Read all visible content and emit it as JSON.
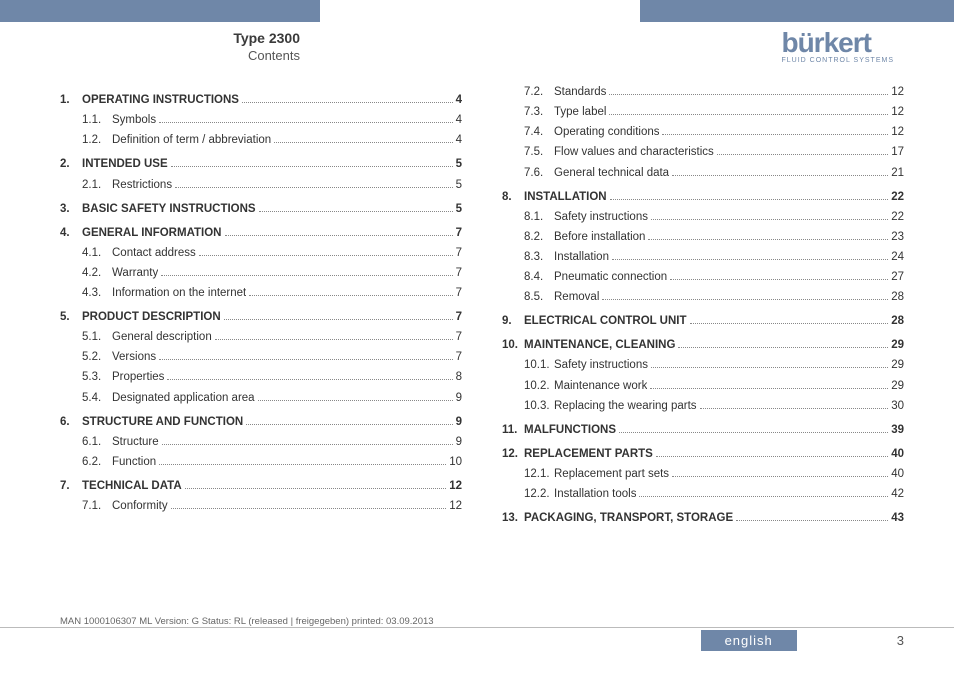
{
  "header": {
    "type_title": "Type 2300",
    "contents_label": "Contents",
    "logo_text": "bürkert",
    "logo_sub": "FLUID CONTROL SYSTEMS"
  },
  "toc_left": [
    {
      "kind": "main",
      "num": "1.",
      "title": "Operating instructions",
      "page": "4"
    },
    {
      "kind": "sub",
      "num": "1.1.",
      "title": "Symbols",
      "page": "4"
    },
    {
      "kind": "sub",
      "num": "1.2.",
      "title": "Definition of term / abbreviation",
      "page": "4"
    },
    {
      "kind": "main",
      "num": "2.",
      "title": "Intended use",
      "page": "5"
    },
    {
      "kind": "sub",
      "num": "2.1.",
      "title": "Restrictions",
      "page": "5"
    },
    {
      "kind": "main",
      "num": "3.",
      "title": "Basic safety instructions",
      "page": "5"
    },
    {
      "kind": "main",
      "num": "4.",
      "title": "General information",
      "page": "7"
    },
    {
      "kind": "sub",
      "num": "4.1.",
      "title": "Contact address",
      "page": "7"
    },
    {
      "kind": "sub",
      "num": "4.2.",
      "title": "Warranty",
      "page": "7"
    },
    {
      "kind": "sub",
      "num": "4.3.",
      "title": "Information on the internet",
      "page": "7"
    },
    {
      "kind": "main",
      "num": "5.",
      "title": "Product description",
      "page": "7"
    },
    {
      "kind": "sub",
      "num": "5.1.",
      "title": "General description",
      "page": "7"
    },
    {
      "kind": "sub",
      "num": "5.2.",
      "title": "Versions",
      "page": "7"
    },
    {
      "kind": "sub",
      "num": "5.3.",
      "title": "Properties",
      "page": "8"
    },
    {
      "kind": "sub",
      "num": "5.4.",
      "title": "Designated application area",
      "page": "9"
    },
    {
      "kind": "main",
      "num": "6.",
      "title": "Structure and function",
      "page": "9"
    },
    {
      "kind": "sub",
      "num": "6.1.",
      "title": "Structure",
      "page": "9"
    },
    {
      "kind": "sub",
      "num": "6.2.",
      "title": "Function",
      "page": "10"
    },
    {
      "kind": "main",
      "num": "7.",
      "title": "Technical data",
      "page": "12"
    },
    {
      "kind": "sub",
      "num": "7.1.",
      "title": "Conformity",
      "page": "12"
    }
  ],
  "toc_right": [
    {
      "kind": "sub",
      "num": "7.2.",
      "title": "Standards",
      "page": "12"
    },
    {
      "kind": "sub",
      "num": "7.3.",
      "title": "Type label",
      "page": "12"
    },
    {
      "kind": "sub",
      "num": "7.4.",
      "title": "Operating conditions",
      "page": "12"
    },
    {
      "kind": "sub",
      "num": "7.5.",
      "title": "Flow values and characteristics",
      "page": "17"
    },
    {
      "kind": "sub",
      "num": "7.6.",
      "title": "General technical data",
      "page": "21"
    },
    {
      "kind": "main",
      "num": "8.",
      "title": "Installation",
      "page": "22"
    },
    {
      "kind": "sub",
      "num": "8.1.",
      "title": "Safety instructions",
      "page": "22"
    },
    {
      "kind": "sub",
      "num": "8.2.",
      "title": "Before installation",
      "page": "23"
    },
    {
      "kind": "sub",
      "num": "8.3.",
      "title": "Installation",
      "page": "24"
    },
    {
      "kind": "sub",
      "num": "8.4.",
      "title": "Pneumatic connection",
      "page": "27"
    },
    {
      "kind": "sub",
      "num": "8.5.",
      "title": "Removal",
      "page": "28"
    },
    {
      "kind": "main",
      "num": "9.",
      "title": "Electrical control unit",
      "page": "28"
    },
    {
      "kind": "main",
      "num": "10.",
      "title": "Maintenance, cleaning",
      "page": "29"
    },
    {
      "kind": "sub",
      "num": "10.1.",
      "title": "Safety instructions",
      "page": "29"
    },
    {
      "kind": "sub",
      "num": "10.2.",
      "title": "Maintenance work",
      "page": "29"
    },
    {
      "kind": "sub",
      "num": "10.3.",
      "title": "Replacing the wearing parts",
      "page": "30"
    },
    {
      "kind": "main",
      "num": "11.",
      "title": "Malfunctions",
      "page": "39"
    },
    {
      "kind": "main",
      "num": "12.",
      "title": "Replacement parts",
      "page": "40"
    },
    {
      "kind": "sub",
      "num": "12.1.",
      "title": "Replacement part sets",
      "page": "40"
    },
    {
      "kind": "sub",
      "num": "12.2.",
      "title": "Installation tools",
      "page": "42"
    },
    {
      "kind": "main",
      "num": "13.",
      "title": "Packaging, transport, storage",
      "page": "43"
    }
  ],
  "footer": {
    "meta": "MAN 1000106307 ML Version: G Status: RL (released | freigegeben) printed: 03.09.2013",
    "language": "english",
    "page": "3"
  }
}
